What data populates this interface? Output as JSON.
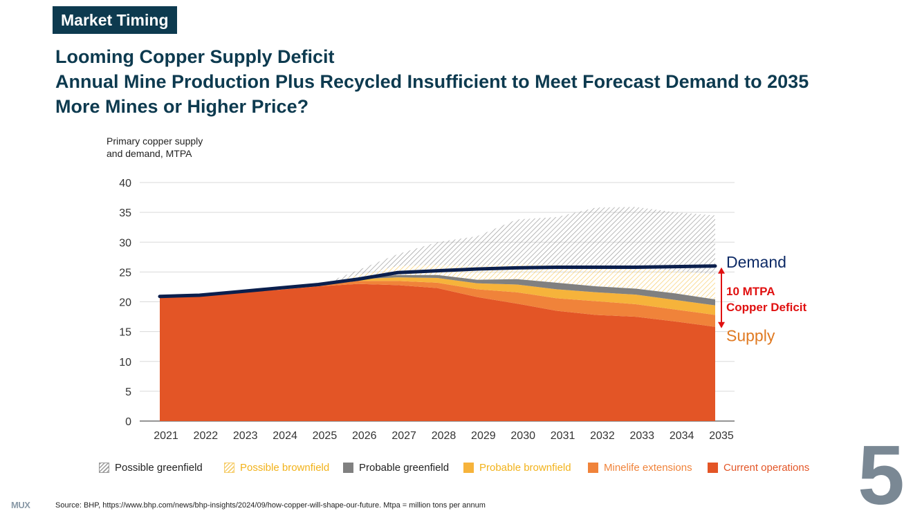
{
  "header": {
    "tag": "Market Timing",
    "title_lines": [
      "Looming Copper Supply Deficit",
      "Annual Mine Production Plus Recycled Insufficient to Meet Forecast Demand to 2035",
      "More Mines or Higher Price?"
    ]
  },
  "chart_data": {
    "type": "area",
    "ylabel_lines": [
      "Primary copper supply",
      "and demand, MTPA"
    ],
    "ylim": [
      0,
      40
    ],
    "yticks": [
      0,
      5,
      10,
      15,
      20,
      25,
      30,
      35,
      40
    ],
    "grid": true,
    "categories": [
      "2021",
      "2022",
      "2023",
      "2024",
      "2025",
      "2026",
      "2027",
      "2028",
      "2029",
      "2030",
      "2031",
      "2032",
      "2033",
      "2034",
      "2035"
    ],
    "stacked_series": [
      {
        "name": "Current operations",
        "color": "#e35526",
        "values": [
          20.7,
          20.9,
          21.6,
          22.0,
          22.6,
          23.0,
          22.8,
          22.3,
          20.8,
          19.7,
          18.5,
          17.8,
          17.5,
          16.7,
          15.8
        ]
      },
      {
        "name": "Minelife extensions",
        "color": "#f0833a",
        "values": [
          0,
          0,
          0,
          0,
          0.1,
          0.5,
          0.7,
          0.9,
          1.3,
          1.9,
          2.1,
          2.3,
          2.1,
          2.0,
          2.0
        ]
      },
      {
        "name": "Probable brownfield",
        "color": "#f6b33b",
        "values": [
          0,
          0,
          0,
          0,
          0,
          0.3,
          0.6,
          0.8,
          1.0,
          1.3,
          1.5,
          1.5,
          1.6,
          1.6,
          1.6
        ]
      },
      {
        "name": "Probable greenfield",
        "color": "#808080",
        "values": [
          0,
          0,
          0,
          0,
          0,
          0.2,
          0.4,
          0.5,
          0.6,
          0.9,
          1.1,
          1.0,
          1.0,
          1.1,
          1.0
        ]
      },
      {
        "name": "Possible brownfield",
        "color": "#f6cd6b",
        "pattern": "hatch",
        "values": [
          0,
          0,
          0,
          0,
          0,
          0.5,
          1.5,
          1.7,
          2.3,
          2.5,
          3.0,
          3.4,
          3.5,
          3.8,
          4.2
        ]
      },
      {
        "name": "Possible greenfield",
        "color": "#9a9a9a",
        "pattern": "hatch",
        "values": [
          0,
          0,
          0,
          0,
          0,
          0.8,
          2.0,
          3.8,
          5.0,
          7.5,
          8.0,
          9.8,
          10.2,
          9.8,
          9.9
        ]
      }
    ],
    "demand": {
      "name": "Demand",
      "color": "#0b1f4d",
      "values": [
        20.9,
        21.1,
        21.7,
        22.3,
        22.9,
        23.8,
        24.9,
        25.2,
        25.5,
        25.7,
        25.8,
        25.8,
        25.8,
        25.9,
        26.0
      ]
    },
    "annotations": {
      "demand_label": "Demand",
      "supply_label": "Supply",
      "deficit_line1": "10 MTPA",
      "deficit_line2": "Copper Deficit",
      "demand_color": "#0d2a66",
      "supply_color": "#e07a22",
      "deficit_color": "#e01010"
    },
    "legend": [
      {
        "label": "Possible greenfield",
        "color": "#9a9a9a",
        "text_color": "#222222",
        "pattern": "hatch"
      },
      {
        "label": "Possible brownfield",
        "color": "#f6cd6b",
        "text_color": "#f2b21a",
        "pattern": "hatch"
      },
      {
        "label": "Probable greenfield",
        "color": "#808080",
        "text_color": "#222222",
        "pattern": "solid"
      },
      {
        "label": "Probable brownfield",
        "color": "#f6b33b",
        "text_color": "#f2b21a",
        "pattern": "solid"
      },
      {
        "label": "Minelife extensions",
        "color": "#f0833a",
        "text_color": "#f0833a",
        "pattern": "solid"
      },
      {
        "label": "Current operations",
        "color": "#e35526",
        "text_color": "#e35526",
        "pattern": "solid"
      }
    ]
  },
  "footer": {
    "source": "Source: BHP, https://www.bhp.com/news/bhp-insights/2024/09/how-copper-will-shape-our-future. Mtpa = million tons per annum",
    "logo": "MUX",
    "page_number": "5"
  }
}
